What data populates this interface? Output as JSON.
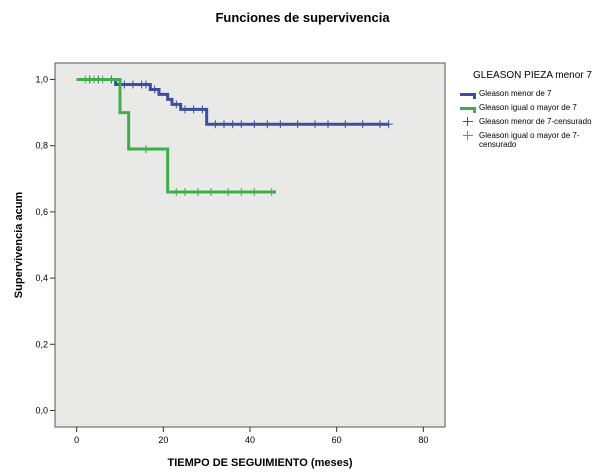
{
  "chart_data": {
    "type": "line",
    "title": "Funciones de supervivencia",
    "xlabel": "TIEMPO DE SEGUIMIENTO (meses)",
    "ylabel": "Supervivencia acum",
    "xlim": [
      -5,
      85
    ],
    "ylim": [
      -0.05,
      1.05
    ],
    "xticks": [
      0,
      20,
      40,
      60,
      80
    ],
    "yticks": [
      0.0,
      0.2,
      0.4,
      0.6,
      0.8,
      1.0
    ],
    "ytick_labels": [
      "0,0",
      "0,2",
      "0,4",
      "0,6",
      "0,8",
      "1,0"
    ],
    "grid": false,
    "legend": {
      "position": "right",
      "title": "GLEASON PIEZA menor 7",
      "entries": [
        "Gleason menor de 7",
        "Gleason igual o mayor de 7",
        "Gleason menor de 7-censurado",
        "Gleason igual o mayor de 7-censurado"
      ]
    },
    "series": [
      {
        "name": "Gleason menor de 7",
        "color": "#3b4ea3",
        "steps": [
          [
            0,
            1.0
          ],
          [
            9,
            0.985
          ],
          [
            17,
            0.97
          ],
          [
            19,
            0.955
          ],
          [
            21,
            0.94
          ],
          [
            22,
            0.925
          ],
          [
            24,
            0.91
          ],
          [
            30,
            0.865
          ],
          [
            72,
            0.865
          ]
        ],
        "censored": [
          [
            3,
            1.0
          ],
          [
            5,
            1.0
          ],
          [
            8,
            1.0
          ],
          [
            11,
            0.985
          ],
          [
            13,
            0.985
          ],
          [
            15,
            0.985
          ],
          [
            16,
            0.985
          ],
          [
            18,
            0.97
          ],
          [
            23,
            0.925
          ],
          [
            25,
            0.91
          ],
          [
            27,
            0.91
          ],
          [
            29,
            0.91
          ],
          [
            32,
            0.865
          ],
          [
            34,
            0.865
          ],
          [
            36,
            0.865
          ],
          [
            38,
            0.865
          ],
          [
            41,
            0.865
          ],
          [
            44,
            0.865
          ],
          [
            47,
            0.865
          ],
          [
            51,
            0.865
          ],
          [
            55,
            0.865
          ],
          [
            58,
            0.865
          ],
          [
            62,
            0.865
          ],
          [
            66,
            0.865
          ],
          [
            70,
            0.865
          ],
          [
            72,
            0.865
          ]
        ]
      },
      {
        "name": "Gleason igual o mayor de 7",
        "color": "#3fae49",
        "steps": [
          [
            0,
            1.0
          ],
          [
            10,
            0.9
          ],
          [
            12,
            0.79
          ],
          [
            21,
            0.66
          ],
          [
            46,
            0.66
          ]
        ],
        "censored": [
          [
            2,
            1.0
          ],
          [
            4,
            1.0
          ],
          [
            6,
            1.0
          ],
          [
            16,
            0.79
          ],
          [
            23,
            0.66
          ],
          [
            25,
            0.66
          ],
          [
            28,
            0.66
          ],
          [
            31,
            0.66
          ],
          [
            35,
            0.66
          ],
          [
            38,
            0.66
          ],
          [
            41,
            0.66
          ],
          [
            45,
            0.66
          ]
        ]
      }
    ]
  }
}
